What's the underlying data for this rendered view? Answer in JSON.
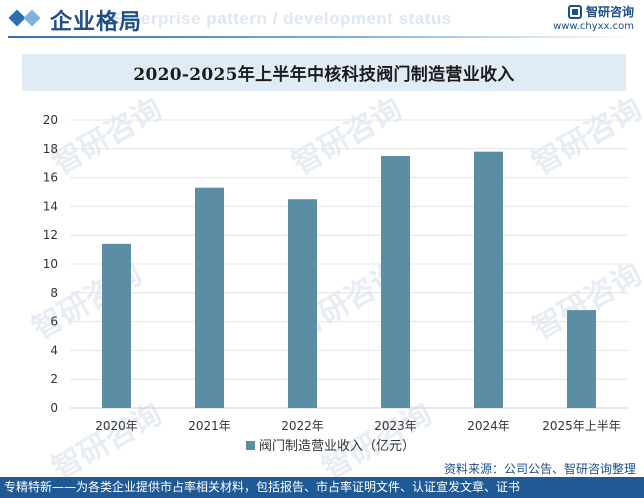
{
  "header": {
    "section_title": "企业格局",
    "section_subtitle": "Enterprise pattern / development status",
    "brand_name": "智研咨询",
    "brand_url": "www.chyxx.com"
  },
  "chart_data": {
    "type": "bar",
    "title": "2020-2025年上半年中核科技阀门制造营业收入",
    "categories": [
      "2020年",
      "2021年",
      "2022年",
      "2023年",
      "2024年",
      "2025年上半年"
    ],
    "series": [
      {
        "name": "阀门制造营业收入（亿元）",
        "values": [
          11.4,
          15.3,
          14.5,
          17.5,
          17.8,
          6.8
        ]
      }
    ],
    "ylim": [
      0,
      20
    ],
    "yticks": [
      0,
      2,
      4,
      6,
      8,
      10,
      12,
      14,
      16,
      18,
      20
    ],
    "grid": true,
    "legend_position": "bottom-center",
    "bar_color": "#5b8ea5",
    "xlabel": "",
    "ylabel": ""
  },
  "footer": {
    "source": "资料来源：公司公告、智研咨询整理",
    "tagline": "专精特新——为各类企业提供市占率相关材料，包括报告、市占率证明文件、认证宣发文章、证书"
  },
  "colors": {
    "brand_blue": "#1e4f86",
    "title_band": "#e1ebf5",
    "footer_bar": "#1f5a97"
  }
}
